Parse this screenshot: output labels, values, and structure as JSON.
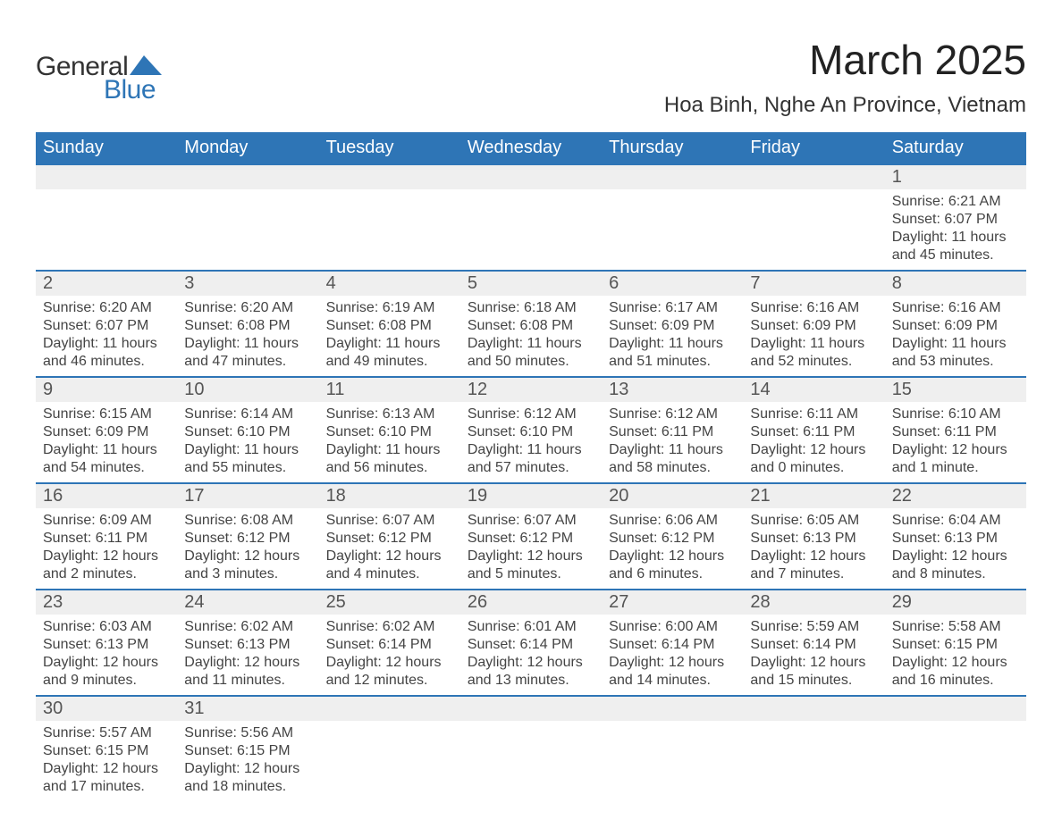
{
  "brand": {
    "word1": "General",
    "word2": "Blue"
  },
  "title": "March 2025",
  "location": "Hoa Binh, Nghe An Province, Vietnam",
  "colors": {
    "header_bg": "#2e75b6",
    "header_text": "#ffffff",
    "daynum_bg": "#efefef",
    "row_border": "#2e75b6",
    "text": "#444444",
    "page_bg": "#ffffff",
    "logo_blue": "#2e75b6"
  },
  "typography": {
    "title_fontsize": 46,
    "location_fontsize": 24,
    "dayheader_fontsize": 20,
    "daynum_fontsize": 20,
    "cell_fontsize": 16,
    "font_family": "Arial"
  },
  "layout": {
    "columns": 7,
    "week_start": "Sunday",
    "aspect": "1188x918"
  },
  "day_headers": [
    "Sunday",
    "Monday",
    "Tuesday",
    "Wednesday",
    "Thursday",
    "Friday",
    "Saturday"
  ],
  "weeks": [
    [
      null,
      null,
      null,
      null,
      null,
      null,
      {
        "n": "1",
        "sr": "Sunrise: 6:21 AM",
        "ss": "Sunset: 6:07 PM",
        "dl1": "Daylight: 11 hours",
        "dl2": "and 45 minutes."
      }
    ],
    [
      {
        "n": "2",
        "sr": "Sunrise: 6:20 AM",
        "ss": "Sunset: 6:07 PM",
        "dl1": "Daylight: 11 hours",
        "dl2": "and 46 minutes."
      },
      {
        "n": "3",
        "sr": "Sunrise: 6:20 AM",
        "ss": "Sunset: 6:08 PM",
        "dl1": "Daylight: 11 hours",
        "dl2": "and 47 minutes."
      },
      {
        "n": "4",
        "sr": "Sunrise: 6:19 AM",
        "ss": "Sunset: 6:08 PM",
        "dl1": "Daylight: 11 hours",
        "dl2": "and 49 minutes."
      },
      {
        "n": "5",
        "sr": "Sunrise: 6:18 AM",
        "ss": "Sunset: 6:08 PM",
        "dl1": "Daylight: 11 hours",
        "dl2": "and 50 minutes."
      },
      {
        "n": "6",
        "sr": "Sunrise: 6:17 AM",
        "ss": "Sunset: 6:09 PM",
        "dl1": "Daylight: 11 hours",
        "dl2": "and 51 minutes."
      },
      {
        "n": "7",
        "sr": "Sunrise: 6:16 AM",
        "ss": "Sunset: 6:09 PM",
        "dl1": "Daylight: 11 hours",
        "dl2": "and 52 minutes."
      },
      {
        "n": "8",
        "sr": "Sunrise: 6:16 AM",
        "ss": "Sunset: 6:09 PM",
        "dl1": "Daylight: 11 hours",
        "dl2": "and 53 minutes."
      }
    ],
    [
      {
        "n": "9",
        "sr": "Sunrise: 6:15 AM",
        "ss": "Sunset: 6:09 PM",
        "dl1": "Daylight: 11 hours",
        "dl2": "and 54 minutes."
      },
      {
        "n": "10",
        "sr": "Sunrise: 6:14 AM",
        "ss": "Sunset: 6:10 PM",
        "dl1": "Daylight: 11 hours",
        "dl2": "and 55 minutes."
      },
      {
        "n": "11",
        "sr": "Sunrise: 6:13 AM",
        "ss": "Sunset: 6:10 PM",
        "dl1": "Daylight: 11 hours",
        "dl2": "and 56 minutes."
      },
      {
        "n": "12",
        "sr": "Sunrise: 6:12 AM",
        "ss": "Sunset: 6:10 PM",
        "dl1": "Daylight: 11 hours",
        "dl2": "and 57 minutes."
      },
      {
        "n": "13",
        "sr": "Sunrise: 6:12 AM",
        "ss": "Sunset: 6:11 PM",
        "dl1": "Daylight: 11 hours",
        "dl2": "and 58 minutes."
      },
      {
        "n": "14",
        "sr": "Sunrise: 6:11 AM",
        "ss": "Sunset: 6:11 PM",
        "dl1": "Daylight: 12 hours",
        "dl2": "and 0 minutes."
      },
      {
        "n": "15",
        "sr": "Sunrise: 6:10 AM",
        "ss": "Sunset: 6:11 PM",
        "dl1": "Daylight: 12 hours",
        "dl2": "and 1 minute."
      }
    ],
    [
      {
        "n": "16",
        "sr": "Sunrise: 6:09 AM",
        "ss": "Sunset: 6:11 PM",
        "dl1": "Daylight: 12 hours",
        "dl2": "and 2 minutes."
      },
      {
        "n": "17",
        "sr": "Sunrise: 6:08 AM",
        "ss": "Sunset: 6:12 PM",
        "dl1": "Daylight: 12 hours",
        "dl2": "and 3 minutes."
      },
      {
        "n": "18",
        "sr": "Sunrise: 6:07 AM",
        "ss": "Sunset: 6:12 PM",
        "dl1": "Daylight: 12 hours",
        "dl2": "and 4 minutes."
      },
      {
        "n": "19",
        "sr": "Sunrise: 6:07 AM",
        "ss": "Sunset: 6:12 PM",
        "dl1": "Daylight: 12 hours",
        "dl2": "and 5 minutes."
      },
      {
        "n": "20",
        "sr": "Sunrise: 6:06 AM",
        "ss": "Sunset: 6:12 PM",
        "dl1": "Daylight: 12 hours",
        "dl2": "and 6 minutes."
      },
      {
        "n": "21",
        "sr": "Sunrise: 6:05 AM",
        "ss": "Sunset: 6:13 PM",
        "dl1": "Daylight: 12 hours",
        "dl2": "and 7 minutes."
      },
      {
        "n": "22",
        "sr": "Sunrise: 6:04 AM",
        "ss": "Sunset: 6:13 PM",
        "dl1": "Daylight: 12 hours",
        "dl2": "and 8 minutes."
      }
    ],
    [
      {
        "n": "23",
        "sr": "Sunrise: 6:03 AM",
        "ss": "Sunset: 6:13 PM",
        "dl1": "Daylight: 12 hours",
        "dl2": "and 9 minutes."
      },
      {
        "n": "24",
        "sr": "Sunrise: 6:02 AM",
        "ss": "Sunset: 6:13 PM",
        "dl1": "Daylight: 12 hours",
        "dl2": "and 11 minutes."
      },
      {
        "n": "25",
        "sr": "Sunrise: 6:02 AM",
        "ss": "Sunset: 6:14 PM",
        "dl1": "Daylight: 12 hours",
        "dl2": "and 12 minutes."
      },
      {
        "n": "26",
        "sr": "Sunrise: 6:01 AM",
        "ss": "Sunset: 6:14 PM",
        "dl1": "Daylight: 12 hours",
        "dl2": "and 13 minutes."
      },
      {
        "n": "27",
        "sr": "Sunrise: 6:00 AM",
        "ss": "Sunset: 6:14 PM",
        "dl1": "Daylight: 12 hours",
        "dl2": "and 14 minutes."
      },
      {
        "n": "28",
        "sr": "Sunrise: 5:59 AM",
        "ss": "Sunset: 6:14 PM",
        "dl1": "Daylight: 12 hours",
        "dl2": "and 15 minutes."
      },
      {
        "n": "29",
        "sr": "Sunrise: 5:58 AM",
        "ss": "Sunset: 6:15 PM",
        "dl1": "Daylight: 12 hours",
        "dl2": "and 16 minutes."
      }
    ],
    [
      {
        "n": "30",
        "sr": "Sunrise: 5:57 AM",
        "ss": "Sunset: 6:15 PM",
        "dl1": "Daylight: 12 hours",
        "dl2": "and 17 minutes."
      },
      {
        "n": "31",
        "sr": "Sunrise: 5:56 AM",
        "ss": "Sunset: 6:15 PM",
        "dl1": "Daylight: 12 hours",
        "dl2": "and 18 minutes."
      },
      null,
      null,
      null,
      null,
      null
    ]
  ]
}
